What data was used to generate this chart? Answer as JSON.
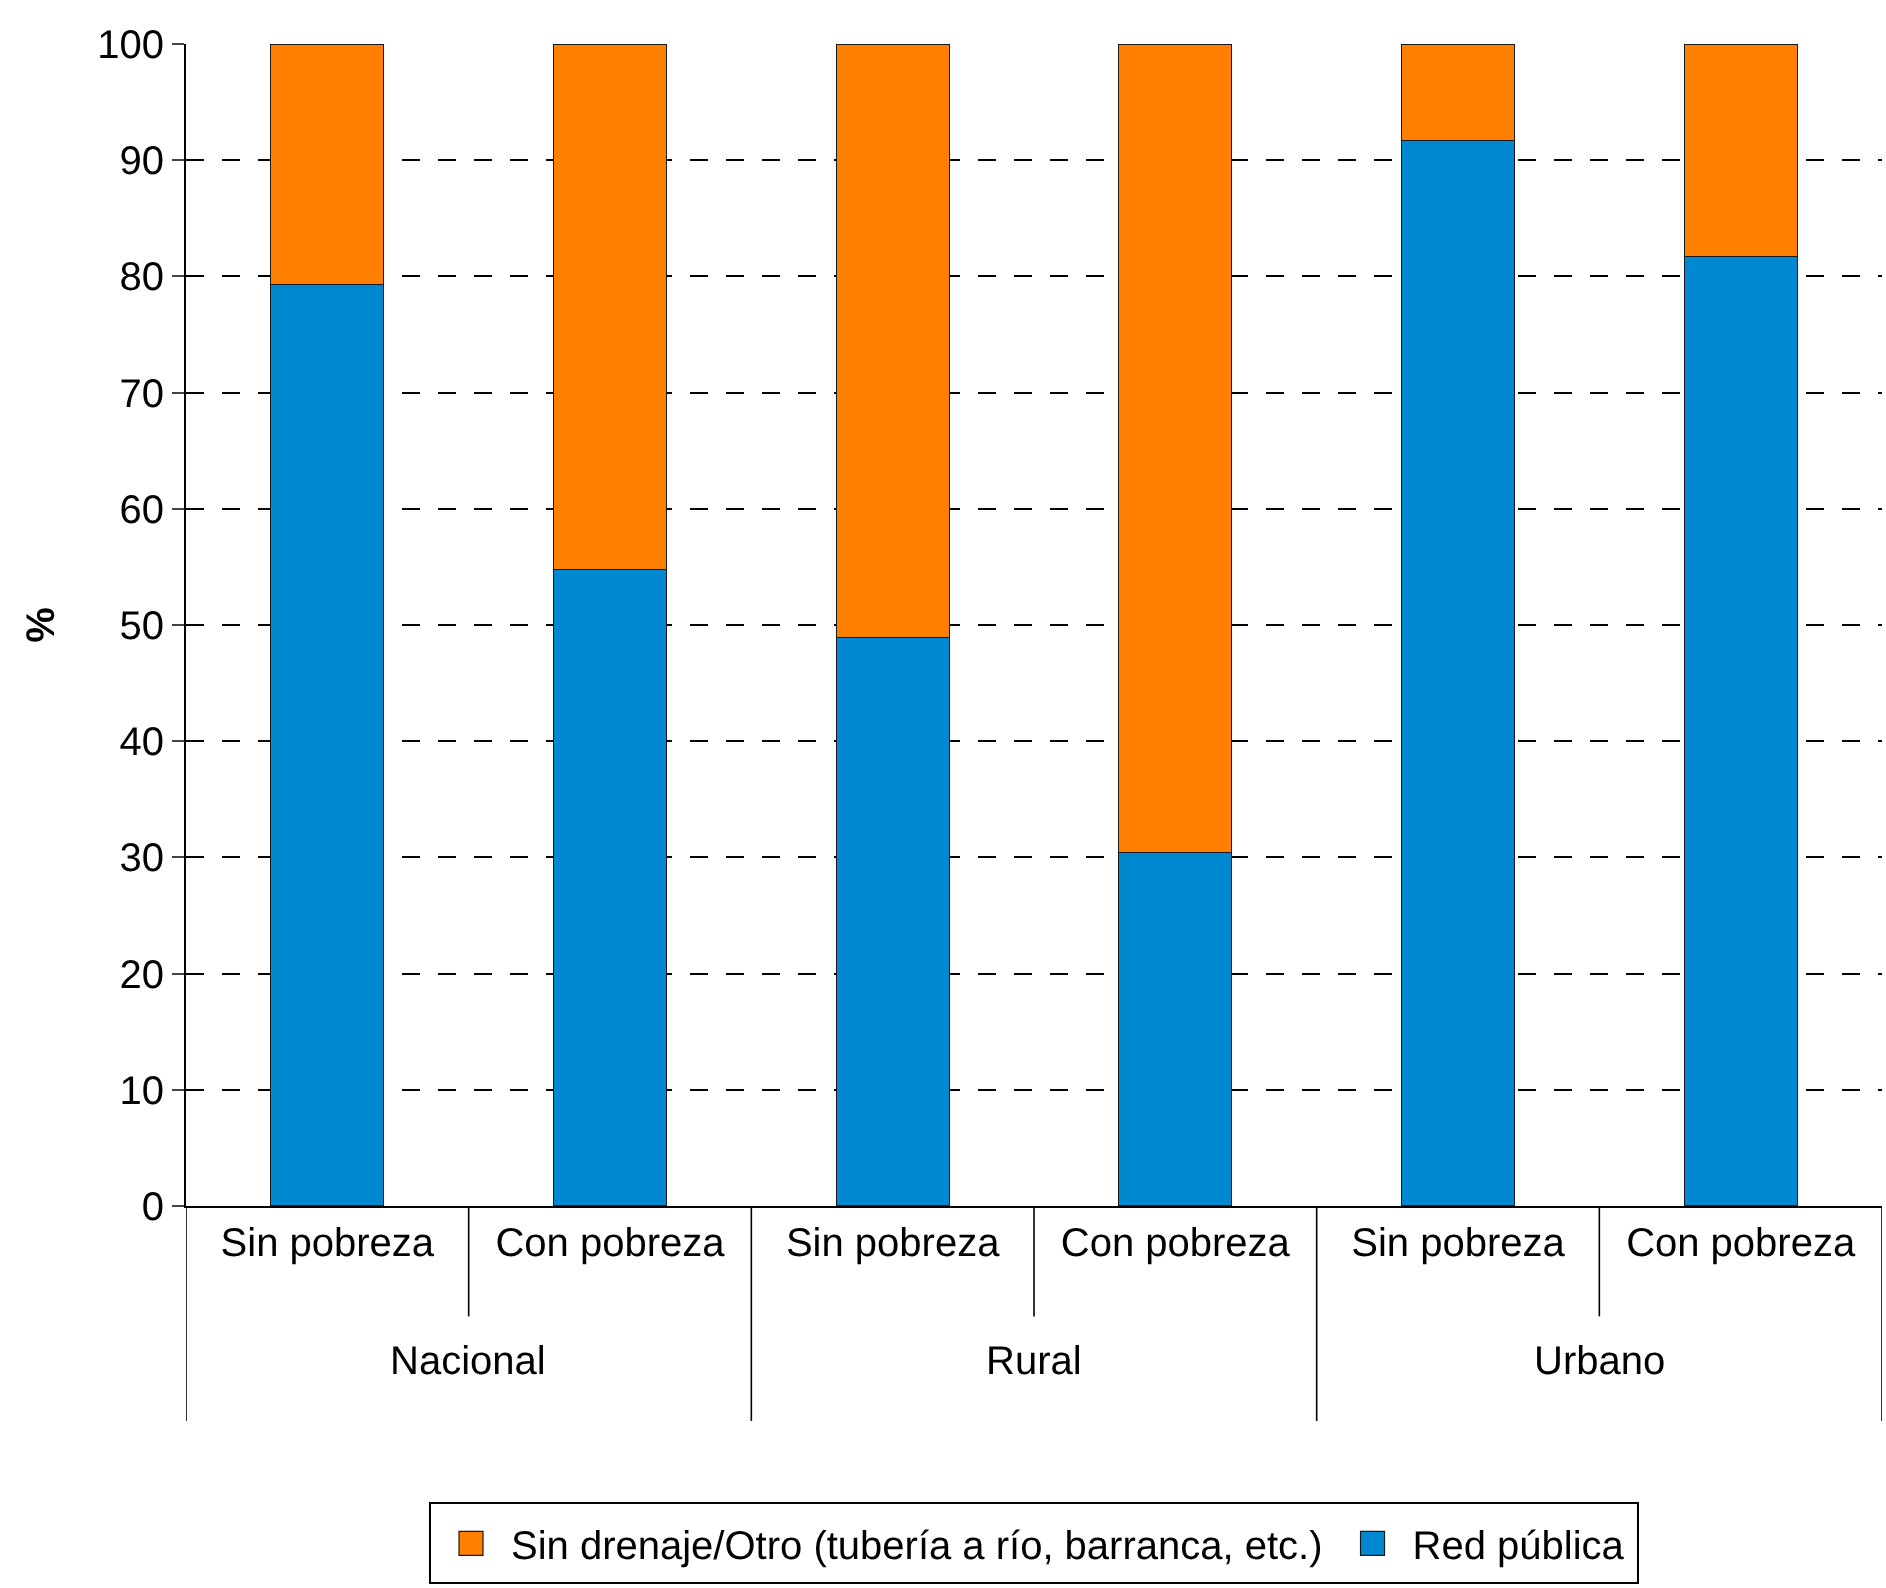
{
  "chart_data": {
    "type": "bar",
    "stacked": true,
    "ylabel": "%",
    "categories": [
      "Sin pobreza",
      "Con pobreza",
      "Sin pobreza",
      "Con pobreza",
      "Sin pobreza",
      "Con pobreza"
    ],
    "series": [
      {
        "name": "Red pública",
        "color": "#0088d1",
        "values": [
          79.3,
          54.8,
          48.9,
          30.4,
          91.7,
          81.7
        ]
      },
      {
        "name": "Sin drenaje/Otro (tubería a río, barranca, etc.)",
        "color": "#ff7f00",
        "values": [
          20.7,
          45.2,
          51.1,
          69.6,
          8.3,
          18.3
        ]
      }
    ],
    "annotations": [
      "Nacional",
      "Rural",
      "Urbano"
    ],
    "ylim": [
      0,
      100
    ],
    "yticks": [
      0,
      10,
      20,
      30,
      40,
      50,
      60,
      70,
      80,
      90,
      100
    ],
    "grid": "y",
    "legend": "bottom"
  }
}
